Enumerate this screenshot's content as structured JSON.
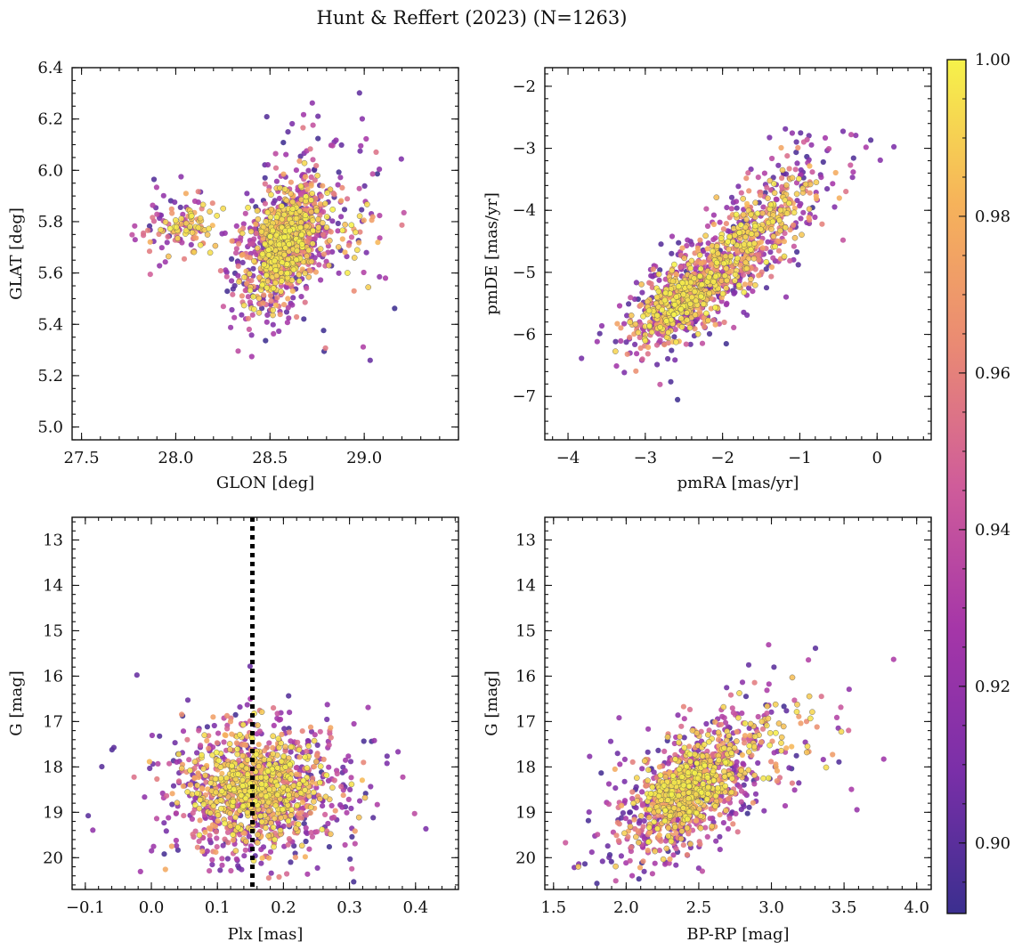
{
  "figure": {
    "title": "Hunt & Reffert (2023) (N=1263)",
    "n_members": 1263
  },
  "colorbar": {
    "range": [
      0.891,
      1.0
    ],
    "ticks": [
      0.9,
      0.92,
      0.94,
      0.96,
      0.98,
      1.0
    ],
    "tick_labels": [
      "0.90",
      "0.92",
      "0.94",
      "0.96",
      "0.98",
      "1.00"
    ],
    "colormap": "plasma",
    "colormap_stops": [
      "#3b2f8f",
      "#7a2fa8",
      "#a536a8",
      "#cf5c9a",
      "#ea8a73",
      "#f6b35a",
      "#f6f24a"
    ]
  },
  "chart_data": [
    {
      "id": "glon-glat",
      "type": "scatter",
      "xlabel": "GLON [deg]",
      "ylabel": "GLAT [deg]",
      "xlim": [
        27.45,
        29.5
      ],
      "ylim": [
        4.95,
        6.4
      ],
      "xticks": [
        27.5,
        28.0,
        28.5,
        29.0
      ],
      "xtick_labels": [
        "27.5",
        "28.0",
        "28.5",
        "29.0"
      ],
      "yticks": [
        5.0,
        5.2,
        5.4,
        5.6,
        5.8,
        6.0,
        6.2,
        6.4
      ],
      "ytick_labels": [
        "5.0",
        "5.2",
        "5.4",
        "5.6",
        "5.8",
        "6.0",
        "6.2",
        "6.4"
      ],
      "x_minor": 0.1,
      "y_minor": 0.05,
      "model": {
        "components": [
          {
            "w": 0.85,
            "mx": 28.58,
            "sx": 0.17,
            "my": 5.72,
            "sy": 0.19,
            "rho": 0.45
          },
          {
            "w": 0.1,
            "mx": 27.95,
            "sx": 0.15,
            "my": 5.8,
            "sy": 0.09,
            "rho": 0.0
          },
          {
            "w": 0.05,
            "mx": 29.0,
            "sx": 0.16,
            "my": 5.75,
            "sy": 0.22,
            "rho": 0.2
          }
        ],
        "prob_trend": 0.004,
        "center": [
          28.58,
          5.72
        ]
      }
    },
    {
      "id": "pmra-pmde",
      "type": "scatter",
      "xlabel": "pmRA [mas/yr]",
      "ylabel": "pmDE [mas/yr]",
      "xlim": [
        -4.3,
        0.7
      ],
      "ylim": [
        -7.7,
        -1.7
      ],
      "xticks": [
        -4,
        -3,
        -2,
        -1,
        0
      ],
      "xtick_labels": [
        "−4",
        "−3",
        "−2",
        "−1",
        "0"
      ],
      "yticks": [
        -7,
        -6,
        -5,
        -4,
        -3,
        -2
      ],
      "ytick_labels": [
        "−7",
        "−6",
        "−5",
        "−4",
        "−3",
        "−2"
      ],
      "x_minor": 0.2,
      "y_minor": 0.2,
      "model": {
        "components": [
          {
            "w": 0.55,
            "mx": -2.5,
            "sx": 0.5,
            "my": -5.4,
            "sy": 0.55,
            "rho": 0.55
          },
          {
            "w": 0.35,
            "mx": -1.6,
            "sx": 0.55,
            "my": -4.4,
            "sy": 0.7,
            "rho": 0.55
          },
          {
            "w": 0.1,
            "mx": -0.8,
            "sx": 0.5,
            "my": -3.4,
            "sy": 0.55,
            "rho": 0.5
          }
        ],
        "prob_trend": 0.012,
        "center": [
          -2.8,
          -5.8
        ]
      }
    },
    {
      "id": "plx-g",
      "type": "scatter",
      "xlabel": "Plx [mas]",
      "ylabel": "G [mag]",
      "xlim": [
        -0.12,
        0.465
      ],
      "ylim": [
        20.7,
        12.5
      ],
      "y_inverted": true,
      "xticks": [
        -0.1,
        0.0,
        0.1,
        0.2,
        0.3,
        0.4
      ],
      "xtick_labels": [
        "−0.1",
        "0.0",
        "0.1",
        "0.2",
        "0.3",
        "0.4"
      ],
      "yticks": [
        13,
        14,
        15,
        16,
        17,
        18,
        19,
        20
      ],
      "ytick_labels": [
        "13",
        "14",
        "15",
        "16",
        "17",
        "18",
        "19",
        "20"
      ],
      "x_minor": 0.02,
      "y_minor": 0.2,
      "vline": 0.153,
      "model": {
        "components": [
          {
            "w": 1.0,
            "mx": 0.16,
            "sx": 0.09,
            "my": 18.5,
            "sy": 1.05,
            "rho": 0.0
          }
        ],
        "prob_trend": 0.004,
        "center": [
          0.13,
          18.3
        ]
      }
    },
    {
      "id": "bprp-g",
      "type": "scatter",
      "xlabel": "BP-RP [mag]",
      "ylabel": "G [mag]",
      "xlim": [
        1.44,
        4.1
      ],
      "ylim": [
        20.7,
        12.5
      ],
      "y_inverted": true,
      "xticks": [
        1.5,
        2.0,
        2.5,
        3.0,
        3.5,
        4.0
      ],
      "xtick_labels": [
        "1.5",
        "2.0",
        "2.5",
        "3.0",
        "3.5",
        "4.0"
      ],
      "yticks": [
        13,
        14,
        15,
        16,
        17,
        18,
        19,
        20
      ],
      "ytick_labels": [
        "13",
        "14",
        "15",
        "16",
        "17",
        "18",
        "19",
        "20"
      ],
      "x_minor": 0.1,
      "y_minor": 0.2,
      "model": {
        "components": [
          {
            "w": 0.9,
            "mx": 2.4,
            "sx": 0.32,
            "my": 18.6,
            "sy": 1.0,
            "rho": -0.5
          },
          {
            "w": 0.1,
            "mx": 3.1,
            "sx": 0.4,
            "my": 17.2,
            "sy": 1.2,
            "rho": -0.4
          }
        ],
        "prob_trend": 0.003,
        "center": [
          2.45,
          18.2
        ]
      }
    }
  ]
}
